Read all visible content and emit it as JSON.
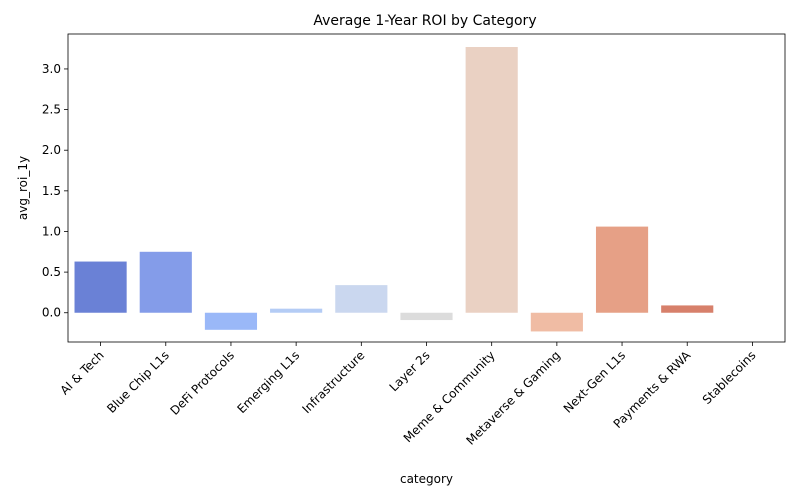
{
  "chart_data": {
    "type": "bar",
    "title": "Average 1-Year ROI by Category",
    "xlabel": "category",
    "ylabel": "avg_roi_1y",
    "categories": [
      "AI & Tech",
      "Blue Chip L1s",
      "DeFi Protocols",
      "Emerging L1s",
      "Infrastructure",
      "Layer 2s",
      "Meme & Community",
      "Metaverse & Gaming",
      "Next-Gen L1s",
      "Payments & RWA",
      "Stablecoins"
    ],
    "values": [
      0.63,
      0.75,
      -0.21,
      0.05,
      0.34,
      -0.09,
      3.27,
      -0.23,
      1.06,
      0.09,
      0.0
    ],
    "colors": [
      "#6a81d6",
      "#849ce9",
      "#9ab8f8",
      "#b4ccf5",
      "#cad7ef",
      "#dcdcdc",
      "#ead1c3",
      "#f0bca4",
      "#e6a086",
      "#d7806b",
      "#c0504d"
    ],
    "ylim": [
      -0.36,
      3.43
    ],
    "yticks": [
      0.0,
      0.5,
      1.0,
      1.5,
      2.0,
      2.5,
      3.0
    ],
    "ytick_labels": [
      "0.0",
      "0.5",
      "1.0",
      "1.5",
      "2.0",
      "2.5",
      "3.0"
    ],
    "grid": false,
    "legend": "none"
  }
}
